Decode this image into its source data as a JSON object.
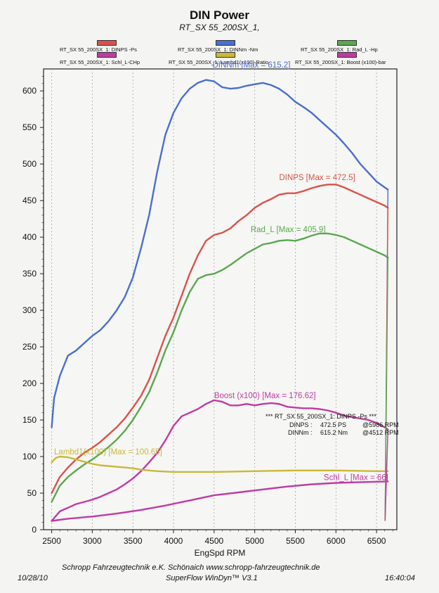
{
  "chart_data": {
    "type": "line",
    "title": "DIN Power",
    "subtitle": "RT_SX 55_200SX_1,",
    "xlabel": "EngSpd RPM",
    "xlim": [
      2400,
      6750
    ],
    "ylim": [
      0,
      630
    ],
    "xticks": [
      "2500",
      "3000",
      "3500",
      "4000",
      "4500",
      "5000",
      "5500",
      "6000",
      "6500"
    ],
    "yticks": [
      "0",
      "50",
      "100",
      "150",
      "200",
      "250",
      "300",
      "350",
      "400",
      "450",
      "500",
      "550",
      "600"
    ],
    "grid": "vertical dashed",
    "legend": [
      {
        "label": "RT_SX 55_200SX_1: DINPS -Ps",
        "color": "#d9534a"
      },
      {
        "label": "RT_SX 55_200SX_1: DINNm -Nm",
        "color": "#4a6fd0"
      },
      {
        "label": "RT_SX 55_200SX_1: Rad_L -Hp",
        "color": "#5aa84e"
      },
      {
        "label": "RT_SX 55_200SX_1: Schl_L-CHp",
        "color": "#c03aa2"
      },
      {
        "label": "RT_SX 55_200SX_1: Lambd1(x100)-Ratio",
        "color": "#c9b83a"
      },
      {
        "label": "RT_SX 55_200SX_1: Boost (x100)-bar",
        "color": "#c03aa2"
      }
    ],
    "series": [
      {
        "name": "DINNm",
        "color": "#4a6fd0",
        "points": [
          [
            2500,
            140
          ],
          [
            2530,
            180
          ],
          [
            2600,
            210
          ],
          [
            2700,
            238
          ],
          [
            2800,
            245
          ],
          [
            2900,
            255
          ],
          [
            3000,
            265
          ],
          [
            3100,
            273
          ],
          [
            3200,
            285
          ],
          [
            3300,
            300
          ],
          [
            3400,
            318
          ],
          [
            3500,
            345
          ],
          [
            3600,
            385
          ],
          [
            3700,
            430
          ],
          [
            3800,
            490
          ],
          [
            3900,
            540
          ],
          [
            4000,
            570
          ],
          [
            4100,
            590
          ],
          [
            4200,
            603
          ],
          [
            4300,
            611
          ],
          [
            4400,
            615
          ],
          [
            4500,
            613
          ],
          [
            4600,
            605
          ],
          [
            4700,
            603
          ],
          [
            4800,
            604
          ],
          [
            4900,
            607
          ],
          [
            5000,
            609
          ],
          [
            5100,
            611
          ],
          [
            5200,
            608
          ],
          [
            5300,
            603
          ],
          [
            5400,
            595
          ],
          [
            5500,
            585
          ],
          [
            5600,
            578
          ],
          [
            5700,
            570
          ],
          [
            5800,
            560
          ],
          [
            5900,
            550
          ],
          [
            6000,
            540
          ],
          [
            6100,
            528
          ],
          [
            6200,
            515
          ],
          [
            6300,
            500
          ],
          [
            6400,
            488
          ],
          [
            6500,
            476
          ],
          [
            6600,
            468
          ],
          [
            6640,
            465
          ]
        ]
      },
      {
        "name": "DINPS",
        "color": "#d9534a",
        "points": [
          [
            2500,
            50
          ],
          [
            2600,
            72
          ],
          [
            2700,
            85
          ],
          [
            2800,
            96
          ],
          [
            2900,
            105
          ],
          [
            3000,
            112
          ],
          [
            3100,
            120
          ],
          [
            3200,
            130
          ],
          [
            3300,
            140
          ],
          [
            3400,
            152
          ],
          [
            3500,
            167
          ],
          [
            3600,
            183
          ],
          [
            3700,
            205
          ],
          [
            3800,
            235
          ],
          [
            3900,
            265
          ],
          [
            4000,
            290
          ],
          [
            4100,
            320
          ],
          [
            4200,
            350
          ],
          [
            4300,
            375
          ],
          [
            4400,
            395
          ],
          [
            4500,
            403
          ],
          [
            4600,
            406
          ],
          [
            4700,
            412
          ],
          [
            4800,
            422
          ],
          [
            4900,
            430
          ],
          [
            5000,
            440
          ],
          [
            5100,
            447
          ],
          [
            5200,
            452
          ],
          [
            5300,
            458
          ],
          [
            5400,
            460
          ],
          [
            5500,
            460
          ],
          [
            5600,
            463
          ],
          [
            5700,
            467
          ],
          [
            5800,
            470
          ],
          [
            5900,
            472
          ],
          [
            6000,
            472
          ],
          [
            6100,
            468
          ],
          [
            6200,
            463
          ],
          [
            6300,
            458
          ],
          [
            6400,
            453
          ],
          [
            6500,
            448
          ],
          [
            6600,
            443
          ],
          [
            6640,
            440
          ]
        ]
      },
      {
        "name": "Rad_L",
        "color": "#5aa84e",
        "points": [
          [
            2500,
            38
          ],
          [
            2600,
            60
          ],
          [
            2700,
            72
          ],
          [
            2800,
            81
          ],
          [
            2900,
            89
          ],
          [
            3000,
            96
          ],
          [
            3100,
            104
          ],
          [
            3200,
            113
          ],
          [
            3300,
            123
          ],
          [
            3400,
            135
          ],
          [
            3500,
            150
          ],
          [
            3600,
            168
          ],
          [
            3700,
            188
          ],
          [
            3800,
            215
          ],
          [
            3900,
            245
          ],
          [
            4000,
            270
          ],
          [
            4100,
            300
          ],
          [
            4200,
            325
          ],
          [
            4300,
            343
          ],
          [
            4400,
            348
          ],
          [
            4500,
            350
          ],
          [
            4600,
            355
          ],
          [
            4700,
            362
          ],
          [
            4800,
            370
          ],
          [
            4900,
            378
          ],
          [
            5000,
            384
          ],
          [
            5100,
            390
          ],
          [
            5200,
            392
          ],
          [
            5300,
            395
          ],
          [
            5400,
            396
          ],
          [
            5500,
            395
          ],
          [
            5600,
            398
          ],
          [
            5700,
            402
          ],
          [
            5800,
            405
          ],
          [
            5900,
            405
          ],
          [
            6000,
            403
          ],
          [
            6100,
            400
          ],
          [
            6200,
            395
          ],
          [
            6300,
            390
          ],
          [
            6400,
            385
          ],
          [
            6500,
            380
          ],
          [
            6600,
            375
          ],
          [
            6640,
            372
          ]
        ]
      },
      {
        "name": "Boost (x100)",
        "color": "#c03aa2",
        "points": [
          [
            2500,
            12
          ],
          [
            2600,
            25
          ],
          [
            2700,
            30
          ],
          [
            2800,
            35
          ],
          [
            2900,
            38
          ],
          [
            3000,
            41
          ],
          [
            3100,
            45
          ],
          [
            3200,
            50
          ],
          [
            3300,
            55
          ],
          [
            3400,
            62
          ],
          [
            3500,
            70
          ],
          [
            3600,
            80
          ],
          [
            3700,
            92
          ],
          [
            3800,
            105
          ],
          [
            3900,
            122
          ],
          [
            4000,
            142
          ],
          [
            4100,
            155
          ],
          [
            4200,
            160
          ],
          [
            4300,
            165
          ],
          [
            4400,
            172
          ],
          [
            4500,
            177
          ],
          [
            4600,
            175
          ],
          [
            4700,
            170
          ],
          [
            4800,
            170
          ],
          [
            4900,
            172
          ],
          [
            5000,
            170
          ],
          [
            5100,
            172
          ],
          [
            5200,
            173
          ],
          [
            5300,
            172
          ],
          [
            5400,
            168
          ],
          [
            5500,
            167
          ],
          [
            5600,
            166
          ],
          [
            5700,
            166
          ],
          [
            5800,
            165
          ],
          [
            5900,
            163
          ],
          [
            6000,
            160
          ],
          [
            6100,
            156
          ],
          [
            6200,
            154
          ],
          [
            6300,
            152
          ],
          [
            6400,
            150
          ],
          [
            6500,
            146
          ],
          [
            6600,
            140
          ],
          [
            6640,
            137
          ]
        ]
      },
      {
        "name": "Lambd1(x100)",
        "color": "#c9b83a",
        "points": [
          [
            2500,
            92
          ],
          [
            2550,
            98
          ],
          [
            2600,
            100
          ],
          [
            2700,
            99
          ],
          [
            2800,
            96
          ],
          [
            2900,
            93
          ],
          [
            3000,
            90
          ],
          [
            3100,
            88
          ],
          [
            3200,
            87
          ],
          [
            3300,
            86
          ],
          [
            3400,
            85
          ],
          [
            3500,
            84
          ],
          [
            3600,
            82
          ],
          [
            3700,
            81
          ],
          [
            3800,
            80
          ],
          [
            4000,
            79
          ],
          [
            4500,
            79
          ],
          [
            5000,
            80
          ],
          [
            5500,
            81
          ],
          [
            6000,
            81
          ],
          [
            6500,
            80
          ],
          [
            6640,
            80
          ]
        ]
      },
      {
        "name": "Schl_L",
        "color": "#c03aa2",
        "points": [
          [
            2500,
            12
          ],
          [
            2700,
            15
          ],
          [
            3000,
            18
          ],
          [
            3300,
            22
          ],
          [
            3600,
            27
          ],
          [
            3900,
            33
          ],
          [
            4200,
            40
          ],
          [
            4500,
            47
          ],
          [
            4800,
            51
          ],
          [
            5100,
            55
          ],
          [
            5400,
            59
          ],
          [
            5700,
            62
          ],
          [
            6000,
            64
          ],
          [
            6300,
            65
          ],
          [
            6640,
            66
          ]
        ]
      }
    ],
    "annotations": [
      {
        "text": "DINNm  [Max = 615.2]",
        "x": 4480,
        "y": 632,
        "color": "#4a6fd0"
      },
      {
        "text": "DINPS  [Max = 472.5]",
        "x": 5300,
        "y": 478,
        "color": "#d9534a"
      },
      {
        "text": "Rad_L  [Max = 405.9]",
        "x": 4950,
        "y": 407,
        "color": "#5aa84e"
      },
      {
        "text": "Boost (x100) [Max = 176.62]",
        "x": 4500,
        "y": 180,
        "color": "#c03aa2"
      },
      {
        "text": "Lambd1(x100) [Max = 100.65]",
        "x": 2530,
        "y": 103,
        "color": "#c9b83a"
      },
      {
        "text": "Schl_L [Max = 66]",
        "x": 5850,
        "y": 68,
        "color": "#c03aa2"
      }
    ],
    "summary": {
      "header": "*** RT_SX 55_200SX_1: DINPS -Ps     ***",
      "row1_name": "DINPS :",
      "row1_value": "472.5 PS",
      "row1_rpm": "@5986 RPM",
      "row2_name": "DINNm :",
      "row2_value": "615.2 Nm",
      "row2_rpm": "@4512 RPM"
    }
  },
  "footer": {
    "company": "Schropp Fahrzeugtechnik e.K.    Schönaich    www.schropp-fahrzeugtechnik.de",
    "software": "SuperFlow WinDyn™ V3.1",
    "date": "10/28/10",
    "time": "16:40:04"
  }
}
